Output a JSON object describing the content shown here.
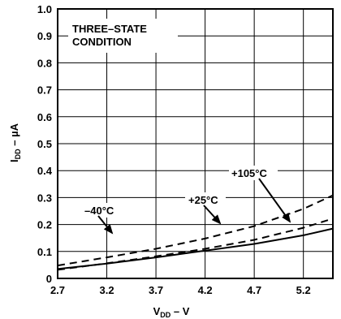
{
  "chart_data": {
    "type": "line",
    "xlabel": {
      "main": "V",
      "sub": "DD",
      "suffix": " – V"
    },
    "ylabel": {
      "main": "I",
      "sub": "DD",
      "suffix": " – µA"
    },
    "xlim": [
      2.7,
      5.5
    ],
    "ylim": [
      0,
      1.0
    ],
    "xticks": [
      "2.7",
      "3.2",
      "3.7",
      "4.2",
      "4.7",
      "5.2"
    ],
    "yticks": [
      "0",
      "0.1",
      "0.2",
      "0.3",
      "0.4",
      "0.5",
      "0.6",
      "0.7",
      "0.8",
      "0.9",
      "1.0"
    ],
    "grid": true,
    "condition_label": [
      "THREE–STATE",
      "CONDITION"
    ],
    "series": [
      {
        "name": "+105°C",
        "style": "solid",
        "x": [
          2.7,
          3.2,
          3.7,
          4.2,
          4.7,
          5.2,
          5.5
        ],
        "y": [
          0.035,
          0.055,
          0.078,
          0.103,
          0.128,
          0.16,
          0.185
        ]
      },
      {
        "name": "+25°C",
        "style": "dashed",
        "x": [
          2.7,
          3.2,
          3.7,
          4.2,
          4.7,
          5.2,
          5.5
        ],
        "y": [
          0.032,
          0.056,
          0.082,
          0.11,
          0.143,
          0.188,
          0.222
        ]
      },
      {
        "name": "–40°C",
        "style": "dashed",
        "x": [
          2.7,
          3.2,
          3.7,
          4.2,
          4.7,
          5.2,
          5.5
        ],
        "y": [
          0.048,
          0.078,
          0.11,
          0.148,
          0.194,
          0.258,
          0.308
        ]
      }
    ]
  }
}
